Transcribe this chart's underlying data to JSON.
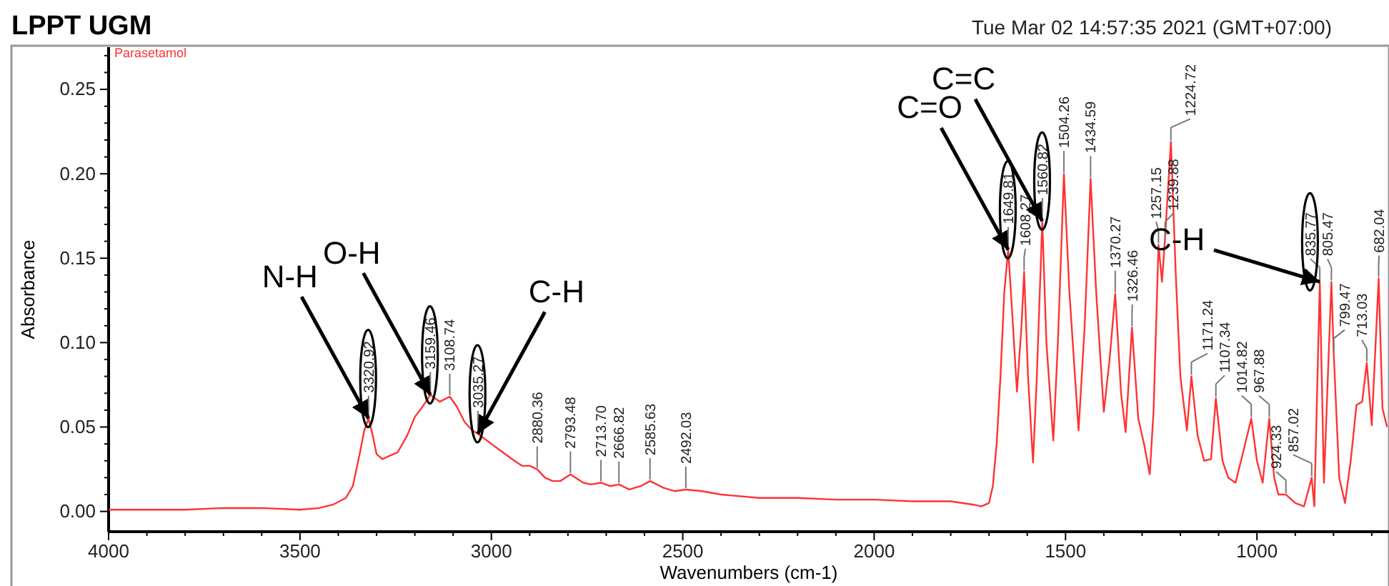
{
  "chart_data": {
    "type": "line",
    "title": "LPPT UGM",
    "subtitle": "Tue Mar 02 14:57:35 2021 (GMT+07:00)",
    "xlabel": "Wavenumbers (cm-1)",
    "ylabel": "Absorbance",
    "xlim": [
      4000,
      655
    ],
    "ylim": [
      -0.012,
      0.275
    ],
    "xticks": [
      4000,
      3500,
      3000,
      2500,
      2000,
      1500,
      1000,
      {
        "value": 3900,
        "label": null
      },
      {
        "value": 3800,
        "label": null
      },
      {
        "value": 3700,
        "label": null
      },
      {
        "value": 3600,
        "label": null
      },
      {
        "value": 3400,
        "label": null
      },
      {
        "value": 3300,
        "label": null
      },
      {
        "value": 3200,
        "label": null
      },
      {
        "value": 3100,
        "label": null
      },
      {
        "value": 2900,
        "label": null
      },
      {
        "value": 2800,
        "label": null
      },
      {
        "value": 2700,
        "label": null
      },
      {
        "value": 2600,
        "label": null
      },
      {
        "value": 2400,
        "label": null
      },
      {
        "value": 2300,
        "label": null
      },
      {
        "value": 2200,
        "label": null
      },
      {
        "value": 2100,
        "label": null
      },
      {
        "value": 1900,
        "label": null
      },
      {
        "value": 1800,
        "label": null
      },
      {
        "value": 1700,
        "label": null
      },
      {
        "value": 1600,
        "label": null
      },
      {
        "value": 1400,
        "label": null
      },
      {
        "value": 1300,
        "label": null
      },
      {
        "value": 1200,
        "label": null
      },
      {
        "value": 1100,
        "label": null
      },
      {
        "value": 900,
        "label": null
      },
      {
        "value": 800,
        "label": null
      },
      {
        "value": 700,
        "label": null
      }
    ],
    "yticks": [
      {
        "value": 0,
        "label": "0.00"
      },
      {
        "value": 0.05,
        "label": "0.05"
      },
      {
        "value": 0.1,
        "label": "0.10"
      },
      {
        "value": 0.15,
        "label": "0.15"
      },
      {
        "value": 0.2,
        "label": "0.20"
      },
      {
        "value": 0.25,
        "label": "0.25"
      },
      {
        "value": 0.01,
        "label": null
      },
      {
        "value": 0.02,
        "label": null
      },
      {
        "value": 0.03,
        "label": null
      },
      {
        "value": 0.04,
        "label": null
      },
      {
        "value": 0.06,
        "label": null
      },
      {
        "value": 0.07,
        "label": null
      },
      {
        "value": 0.08,
        "label": null
      },
      {
        "value": 0.09,
        "label": null
      },
      {
        "value": 0.11,
        "label": null
      },
      {
        "value": 0.12,
        "label": null
      },
      {
        "value": 0.13,
        "label": null
      },
      {
        "value": 0.14,
        "label": null
      },
      {
        "value": 0.16,
        "label": null
      },
      {
        "value": 0.17,
        "label": null
      },
      {
        "value": 0.18,
        "label": null
      },
      {
        "value": 0.19,
        "label": null
      },
      {
        "value": 0.21,
        "label": null
      },
      {
        "value": 0.22,
        "label": null
      },
      {
        "value": 0.23,
        "label": null
      },
      {
        "value": 0.24,
        "label": null
      },
      {
        "value": 0.26,
        "label": null
      },
      {
        "value": 0.27,
        "label": null
      }
    ],
    "grid": false,
    "legend": false,
    "marker": "none",
    "line_style": "solid",
    "series": [
      {
        "name": "Parasetamol",
        "color": "#ff3333",
        "x": [
          4000,
          3900,
          3800,
          3700,
          3600,
          3500,
          3450,
          3414,
          3380,
          3362,
          3345,
          3332,
          3320.92,
          3310,
          3300,
          3285,
          3265,
          3245,
          3220,
          3200,
          3180,
          3159.46,
          3135,
          3108.74,
          3090,
          3070,
          3050,
          3035.27,
          3000,
          2970,
          2940,
          2920,
          2900,
          2880.36,
          2860,
          2840,
          2820,
          2793.48,
          2760,
          2740,
          2713.7,
          2690,
          2666.82,
          2640,
          2610,
          2585.63,
          2550,
          2520,
          2492.03,
          2450,
          2400,
          2300,
          2200,
          2100,
          2000,
          1900,
          1800,
          1740,
          1720,
          1700,
          1690,
          1680,
          1670,
          1660,
          1649.81,
          1640,
          1627,
          1615,
          1608.27,
          1598,
          1585,
          1575,
          1560.82,
          1550,
          1532,
          1520,
          1504.26,
          1490,
          1466,
          1450,
          1434.59,
          1420,
          1400,
          1385,
          1370.27,
          1355,
          1343,
          1326.46,
          1310,
          1295,
          1280,
          1270,
          1257.15,
          1248,
          1239.88,
          1224.72,
          1212,
          1200,
          1183,
          1171.24,
          1155,
          1138,
          1120,
          1107.34,
          1090,
          1075,
          1056,
          1034,
          1014.82,
          1000,
          985,
          967.88,
          955,
          944,
          924.33,
          900,
          877,
          857.02,
          850,
          835.77,
          825,
          805.47,
          799.47,
          785,
          770,
          755,
          740,
          725,
          713.03,
          700,
          682.04,
          672,
          660
        ],
        "values": [
          0.001,
          0.001,
          0.001,
          0.002,
          0.002,
          0.001,
          0.002,
          0.004,
          0.008,
          0.015,
          0.033,
          0.048,
          0.055,
          0.045,
          0.034,
          0.031,
          0.033,
          0.035,
          0.045,
          0.056,
          0.062,
          0.069,
          0.065,
          0.068,
          0.062,
          0.053,
          0.048,
          0.046,
          0.04,
          0.035,
          0.03,
          0.027,
          0.027,
          0.025,
          0.02,
          0.018,
          0.018,
          0.022,
          0.017,
          0.016,
          0.017,
          0.015,
          0.016,
          0.013,
          0.015,
          0.018,
          0.014,
          0.012,
          0.013,
          0.012,
          0.01,
          0.008,
          0.008,
          0.007,
          0.007,
          0.006,
          0.006,
          0.004,
          0.003,
          0.005,
          0.015,
          0.04,
          0.08,
          0.13,
          0.155,
          0.12,
          0.071,
          0.11,
          0.142,
          0.08,
          0.029,
          0.08,
          0.172,
          0.1,
          0.042,
          0.1,
          0.2,
          0.13,
          0.048,
          0.11,
          0.197,
          0.13,
          0.059,
          0.09,
          0.129,
          0.07,
          0.047,
          0.109,
          0.055,
          0.04,
          0.022,
          0.06,
          0.158,
          0.136,
          0.163,
          0.219,
          0.14,
          0.08,
          0.048,
          0.08,
          0.045,
          0.03,
          0.031,
          0.067,
          0.03,
          0.02,
          0.017,
          0.037,
          0.055,
          0.03,
          0.017,
          0.055,
          0.02,
          0.01,
          0.01,
          0.005,
          0.003,
          0.02,
          0.003,
          0.136,
          0.017,
          0.136,
          0.094,
          0.02,
          0.005,
          0.03,
          0.063,
          0.065,
          0.088,
          0.051,
          0.138,
          0.061,
          0.05
        ]
      }
    ],
    "annotations": [
      {
        "text": "3320.92",
        "x": 3320.92,
        "y": 0.055
      },
      {
        "text": "3159.46",
        "x": 3159.46,
        "y": 0.069
      },
      {
        "text": "3108.74",
        "x": 3108.74,
        "y": 0.068
      },
      {
        "text": "3035.27",
        "x": 3035.27,
        "y": 0.046
      },
      {
        "text": "2880.36",
        "x": 2880.36,
        "y": 0.025
      },
      {
        "text": "2793.48",
        "x": 2793.48,
        "y": 0.022
      },
      {
        "text": "2713.70",
        "x": 2713.7,
        "y": 0.017
      },
      {
        "text": "2666.82",
        "x": 2666.82,
        "y": 0.016
      },
      {
        "text": "2585.63",
        "x": 2585.63,
        "y": 0.018
      },
      {
        "text": "2492.03",
        "x": 2492.03,
        "y": 0.013
      },
      {
        "text": "1649.81",
        "x": 1649.81,
        "y": 0.155
      },
      {
        "text": "1608.27",
        "x": 1608.27,
        "y": 0.142
      },
      {
        "text": "1560.82",
        "x": 1560.82,
        "y": 0.172
      },
      {
        "text": "1504.26",
        "x": 1504.26,
        "y": 0.2
      },
      {
        "text": "1434.59",
        "x": 1434.59,
        "y": 0.197
      },
      {
        "text": "1370.27",
        "x": 1370.27,
        "y": 0.129
      },
      {
        "text": "1326.46",
        "x": 1326.46,
        "y": 0.109
      },
      {
        "text": "1257.15",
        "x": 1257.15,
        "y": 0.158
      },
      {
        "text": "1239.88",
        "x": 1239.88,
        "y": 0.163
      },
      {
        "text": "1224.72",
        "x": 1224.72,
        "y": 0.219
      },
      {
        "text": "1171.24",
        "x": 1171.24,
        "y": 0.08
      },
      {
        "text": "1107.34",
        "x": 1107.34,
        "y": 0.067
      },
      {
        "text": "1014.82",
        "x": 1014.82,
        "y": 0.055
      },
      {
        "text": "967.88",
        "x": 967.88,
        "y": 0.055
      },
      {
        "text": "924.33",
        "x": 924.33,
        "y": 0.01
      },
      {
        "text": "857.02",
        "x": 857.02,
        "y": 0.02
      },
      {
        "text": "835.77",
        "x": 835.77,
        "y": 0.136
      },
      {
        "text": "805.47",
        "x": 805.47,
        "y": 0.136
      },
      {
        "text": "799.47",
        "x": 799.47,
        "y": 0.094
      },
      {
        "text": "713.03",
        "x": 713.03,
        "y": 0.088
      },
      {
        "text": "682.04",
        "x": 682.04,
        "y": 0.138
      },
      {
        "text": "N-H",
        "x": 3320.92,
        "y": 0.055
      },
      {
        "text": "O-H",
        "x": 3159.46,
        "y": 0.069
      },
      {
        "text": "C-H",
        "x": 3035.27,
        "y": 0.046
      },
      {
        "text": "C=C",
        "x": 1560.82,
        "y": 0.172
      },
      {
        "text": "C=O",
        "x": 1649.81,
        "y": 0.155
      },
      {
        "text": "C-H",
        "x": 835.77,
        "y": 0.136
      }
    ]
  }
}
